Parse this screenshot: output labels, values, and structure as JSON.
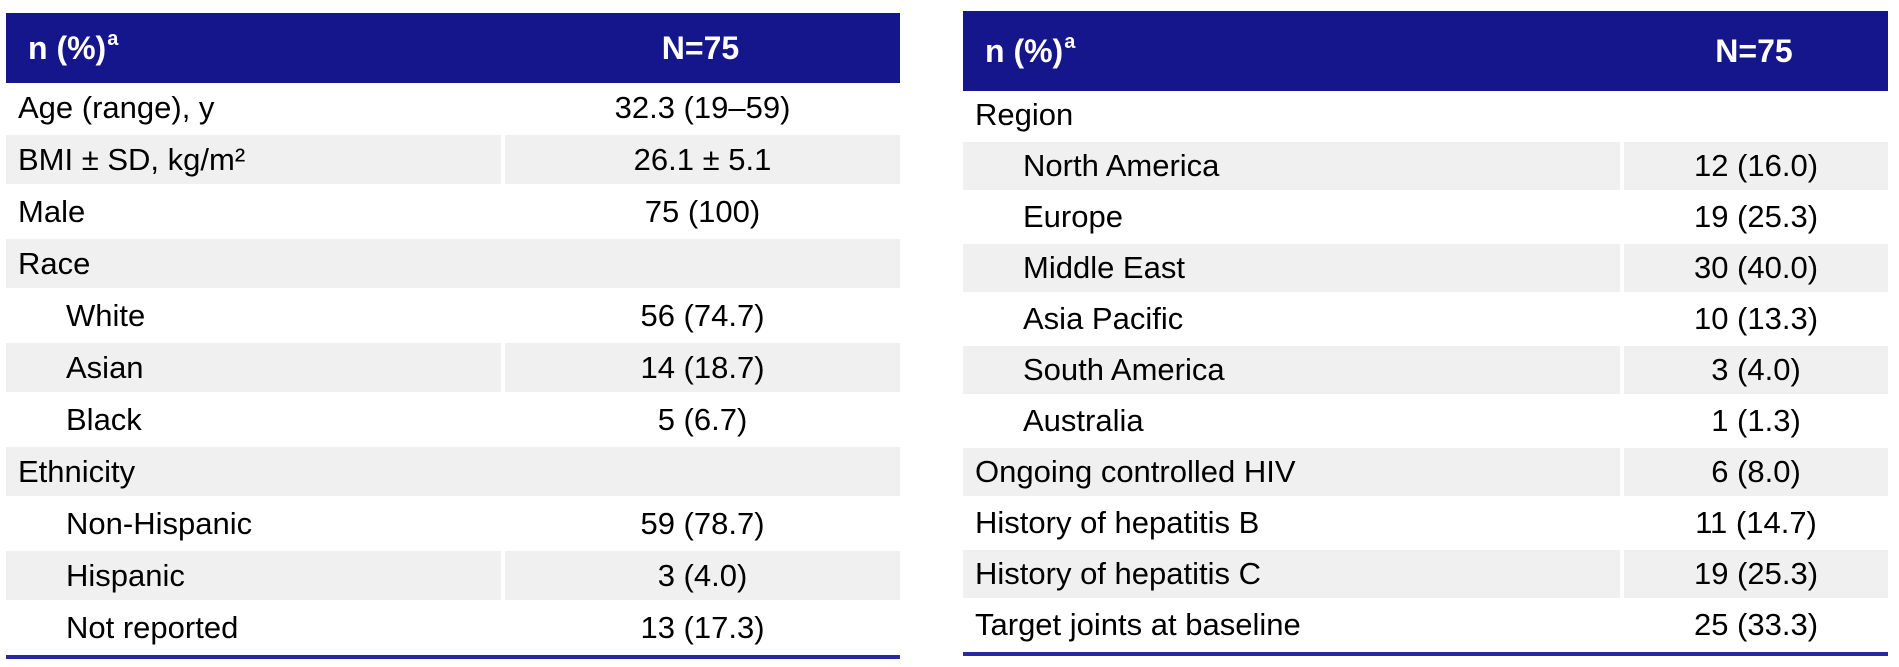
{
  "colors": {
    "header_bg": "#15158C",
    "header_text": "#FFFFFF",
    "stripe": "#F0F0F0",
    "rule": "#2828A2",
    "text": "#000000"
  },
  "tables": [
    {
      "title": "baseline-demographics",
      "header": {
        "label": "n (%)",
        "sup": "a",
        "value": "N=75"
      },
      "rows": [
        {
          "label": "Age (range), y",
          "value": "32.3 (19–59)",
          "indent": false
        },
        {
          "label": "BMI ± SD, kg/m²",
          "value": "26.1 ± 5.1",
          "indent": false
        },
        {
          "label": "Male",
          "value": "75 (100)",
          "indent": false
        },
        {
          "label": "Race",
          "value": "",
          "indent": false
        },
        {
          "label": "White",
          "value": "56 (74.7)",
          "indent": true
        },
        {
          "label": "Asian",
          "value": "14 (18.7)",
          "indent": true
        },
        {
          "label": "Black",
          "value": "5 (6.7)",
          "indent": true
        },
        {
          "label": "Ethnicity",
          "value": "",
          "indent": false
        },
        {
          "label": "Non-Hispanic",
          "value": "59 (78.7)",
          "indent": true
        },
        {
          "label": "Hispanic",
          "value": "3 (4.0)",
          "indent": true
        },
        {
          "label": "Not reported",
          "value": "13 (17.3)",
          "indent": true
        }
      ]
    },
    {
      "title": "region-and-medical-history",
      "header": {
        "label": "n (%)",
        "sup": "a",
        "value": "N=75"
      },
      "rows": [
        {
          "label": "Region",
          "value": "",
          "indent": false
        },
        {
          "label": "North America",
          "value": "12 (16.0)",
          "indent": true
        },
        {
          "label": "Europe",
          "value": "19 (25.3)",
          "indent": true
        },
        {
          "label": "Middle East",
          "value": "30 (40.0)",
          "indent": true
        },
        {
          "label": "Asia Pacific",
          "value": "10 (13.3)",
          "indent": true
        },
        {
          "label": "South America",
          "value": "3 (4.0)",
          "indent": true
        },
        {
          "label": "Australia",
          "value": "1 (1.3)",
          "indent": true
        },
        {
          "label": "Ongoing controlled HIV",
          "value": "6 (8.0)",
          "indent": false
        },
        {
          "label": "History of hepatitis B",
          "value": "11 (14.7)",
          "indent": false
        },
        {
          "label": "History of hepatitis C",
          "value": "19 (25.3)",
          "indent": false
        },
        {
          "label": "Target joints at baseline",
          "value": "25 (33.3)",
          "indent": false
        }
      ]
    }
  ]
}
